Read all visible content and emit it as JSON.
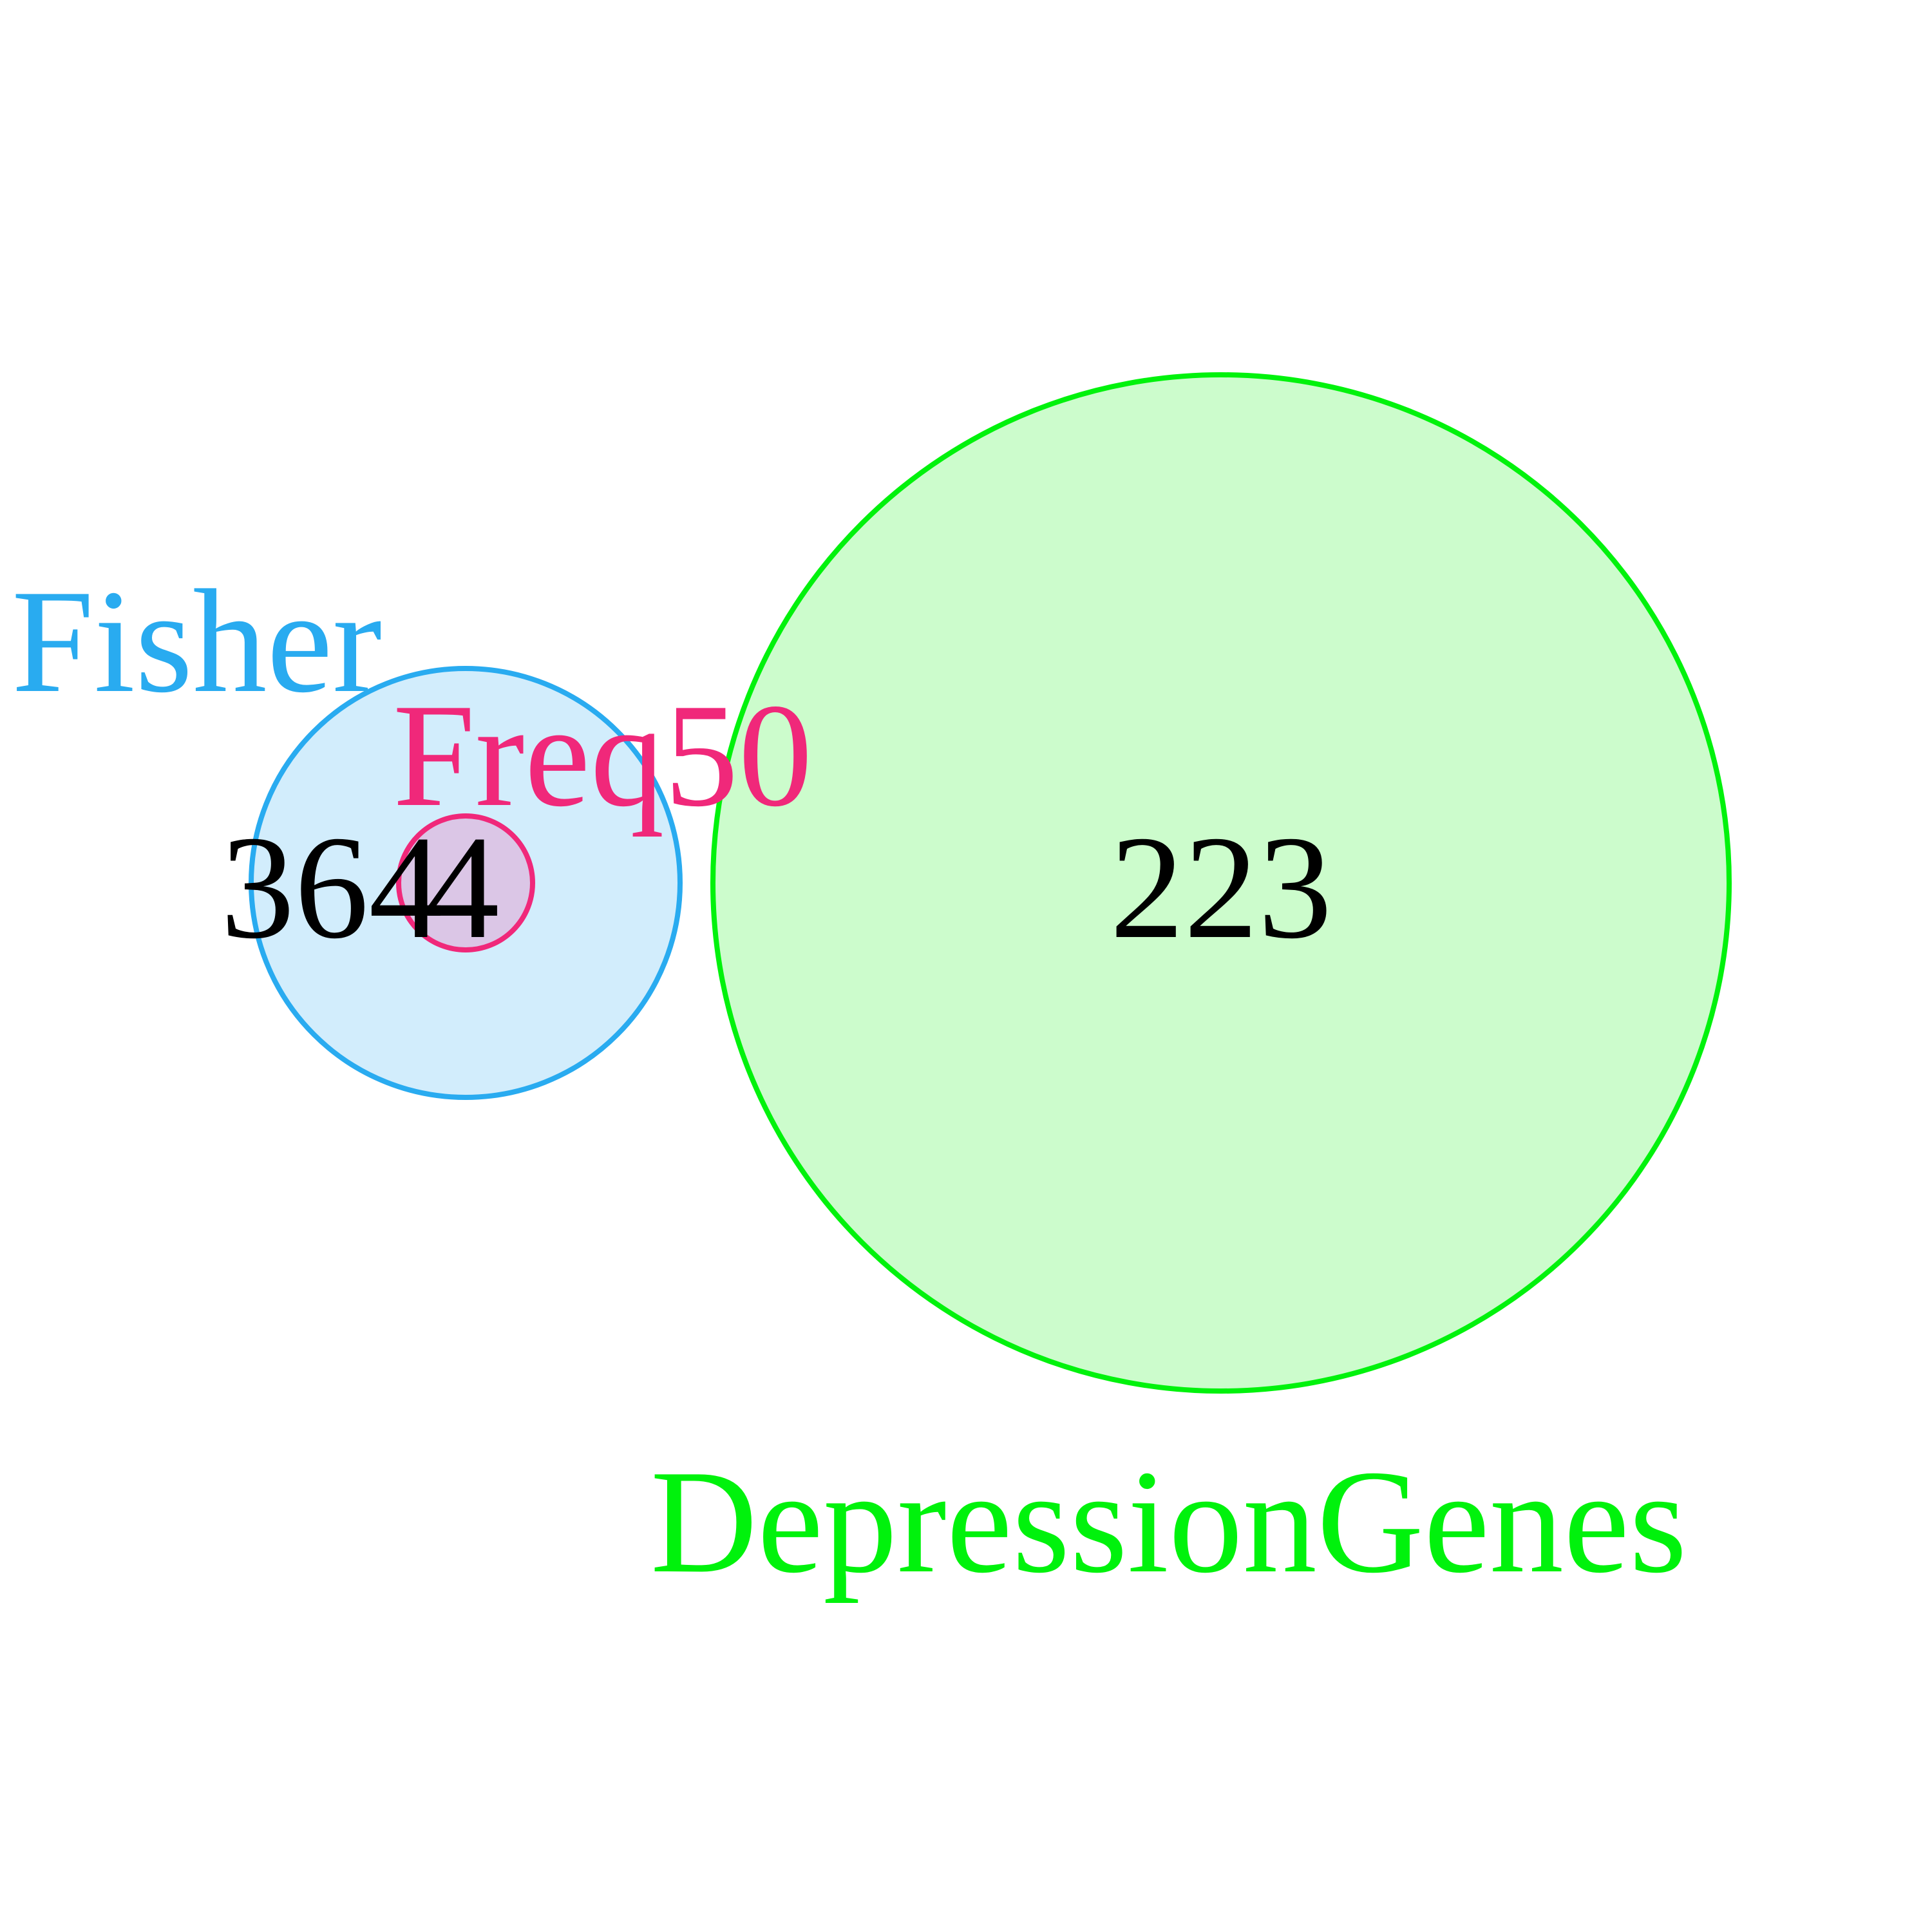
{
  "diagram": {
    "type": "euler-venn",
    "sets": [
      {
        "id": "fisher",
        "label": "Fisher",
        "stroke": "#29abf0",
        "fill": "#d2edfc"
      },
      {
        "id": "freq50",
        "label": "Freq50",
        "stroke": "#f0287a",
        "fill": "#dbc6e6"
      },
      {
        "id": "depression",
        "label": "DepressionGenes",
        "stroke": "#00f20c",
        "fill": "#ccfccc"
      }
    ],
    "relations": "Freq50 lies entirely inside Fisher; DepressionGenes is disjoint from both",
    "counts": {
      "fisher_only": "364",
      "fisher_and_freq50": "4",
      "depression_only": "223"
    }
  }
}
